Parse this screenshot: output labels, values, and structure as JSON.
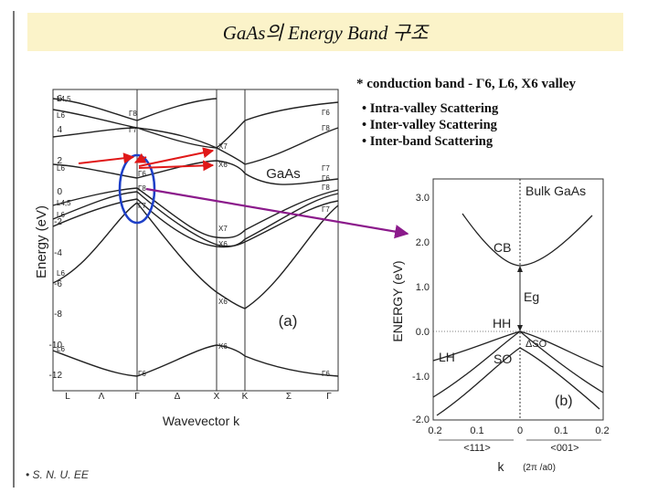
{
  "slide": {
    "title": "GaAs의 Energy Band 구조",
    "note": "* conduction band - Γ6, L6, X6 valley",
    "bullets": [
      "• Intra-valley Scattering",
      "• Inter-valley Scattering",
      "• Inter-band Scattering"
    ],
    "footer": "• S. N. U. EE"
  },
  "left_figure": {
    "ylabel": "Energy (eV)",
    "xlabel": "Wavevector k",
    "material": "GaAs",
    "panel": "(a)",
    "y_ticks": [
      "6",
      "4",
      "2",
      "0",
      "-2",
      "-4",
      "-6",
      "-8",
      "-10",
      "-12"
    ],
    "x_ticks": [
      "L",
      "Λ",
      "Γ",
      "Δ",
      "X",
      "K",
      "Σ",
      "Γ"
    ],
    "point_labels": [
      "L4,5",
      "L6",
      "Γ8",
      "Γ7",
      "X7",
      "X6",
      "L6",
      "Γ6",
      "Γ8",
      "Γ7",
      "L4,5",
      "L6",
      "Γ8",
      "Γ7",
      "X7",
      "X6",
      "L6",
      "X6",
      "L6",
      "X6",
      "Γ6",
      "Γ6",
      "Γ6",
      "Γ8",
      "Γ7",
      "Γ6"
    ]
  },
  "right_figure": {
    "title": "Bulk GaAs",
    "ylabel": "ENERGY (eV)",
    "y_ticks": [
      "3.0",
      "2.0",
      "1.0",
      "0.0",
      "-1.0",
      "-2.0"
    ],
    "x_ticks": [
      "0.2",
      "0.1",
      "0",
      "0.1",
      "0.2"
    ],
    "dir_left": "<111>",
    "dir_right": "<001>",
    "xlabel": "k",
    "xunit": "(2π /a0)",
    "labels": {
      "cb": "CB",
      "eg": "Eg",
      "hh": "HH",
      "lh": "LH",
      "so": "SO",
      "dso": "ΔSO"
    },
    "panel": "(b)"
  },
  "colors": {
    "titlebar": "#fbf3c9",
    "arrow_red": "#e01818",
    "arrow_purple": "#8b1a8b",
    "circle_blue": "#1d3fc7"
  }
}
